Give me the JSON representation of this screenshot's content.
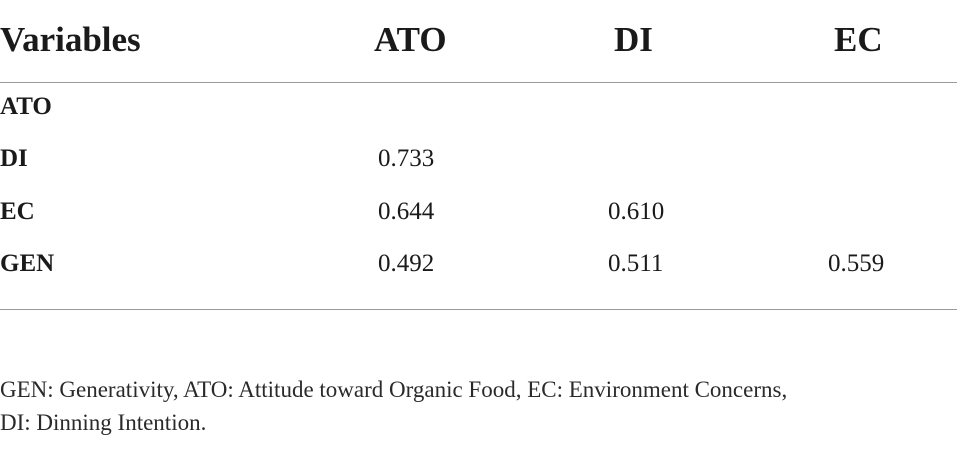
{
  "table": {
    "headers": [
      "Variables",
      "ATO",
      "DI",
      "EC"
    ],
    "rows": [
      {
        "label": "ATO",
        "values": [
          "",
          "",
          ""
        ]
      },
      {
        "label": "DI",
        "values": [
          "0.733",
          "",
          ""
        ]
      },
      {
        "label": "EC",
        "values": [
          "0.644",
          "0.610",
          ""
        ]
      },
      {
        "label": "GEN",
        "values": [
          "0.492",
          "0.511",
          "0.559"
        ]
      }
    ]
  },
  "footnote": {
    "line1": "GEN: Generativity, ATO: Attitude toward Organic Food, EC: Environment Concerns,",
    "line2": "DI: Dinning Intention."
  }
}
